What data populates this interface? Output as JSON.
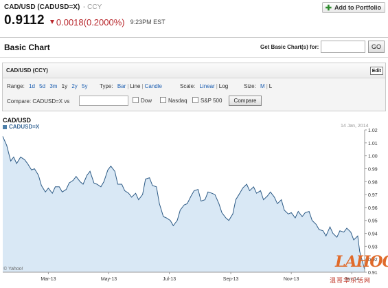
{
  "quote": {
    "title": "CAD/USD (CADUSD=X)",
    "exchange": "- CCY",
    "price": "0.9112",
    "change": "0.0018",
    "change_pct": "(0.2000%)",
    "time": "9:23PM EST",
    "add_portfolio": "Add to Portfolio",
    "down_color": "#b8272c"
  },
  "section": {
    "title": "Basic Chart",
    "get_label": "Get Basic Chart(s) for:",
    "get_value": "",
    "go_label": "GO"
  },
  "panel": {
    "title": "CAD/USD (CCY)",
    "edit_label": "Edit",
    "range_label": "Range:",
    "ranges": [
      "1d",
      "5d",
      "3m",
      "1y",
      "2y",
      "5y"
    ],
    "range_selected": "1y",
    "type_label": "Type:",
    "types": [
      "Bar",
      "Line",
      "Candle"
    ],
    "type_selected": "Line",
    "scale_label": "Scale:",
    "scales": [
      "Linear",
      "Log"
    ],
    "scale_selected": "Log",
    "size_label": "Size:",
    "sizes": [
      "M",
      "L"
    ],
    "size_selected": "L",
    "compare_label": "Compare: CADUSD=X vs",
    "compare_value": "",
    "checks": [
      "Dow",
      "Nasdaq",
      "S&P 500"
    ],
    "compare_btn": "Compare"
  },
  "chart_data": {
    "type": "area",
    "title": "CAD/USD",
    "series_label": "CADUSD=X",
    "date_label": "14 Jan, 2014",
    "credit": "© Yahoo!",
    "x_tick_labels": [
      "Mar-13",
      "May-13",
      "Jul-13",
      "Sep-13",
      "Nov-13",
      "Jan-14"
    ],
    "y_ticks": [
      0.91,
      0.92,
      0.93,
      0.94,
      0.95,
      0.96,
      0.97,
      0.98,
      0.99,
      1.0,
      1.01,
      1.02
    ],
    "y_tick_labels": [
      "0.91",
      "0.92",
      "0.93",
      "0.94",
      "0.95",
      "0.96",
      "0.97",
      "0.98",
      "0.99",
      "1.00",
      "1.01",
      "1.02"
    ],
    "ylim": [
      0.91,
      1.02
    ],
    "xlim": [
      "2013-01-14",
      "2014-01-14"
    ],
    "grid": false,
    "line_color": "#2c5a85",
    "fill_color": "#d9e8f5",
    "series": [
      {
        "points": [
          [
            "2013-01-14",
            1.015
          ],
          [
            "2013-01-18",
            1.008
          ],
          [
            "2013-01-22",
            0.996
          ],
          [
            "2013-01-25",
            0.999
          ],
          [
            "2013-01-28",
            0.994
          ],
          [
            "2013-02-01",
            0.999
          ],
          [
            "2013-02-05",
            0.997
          ],
          [
            "2013-02-08",
            0.994
          ],
          [
            "2013-02-12",
            0.989
          ],
          [
            "2013-02-15",
            0.99
          ],
          [
            "2013-02-19",
            0.985
          ],
          [
            "2013-02-22",
            0.977
          ],
          [
            "2013-02-26",
            0.972
          ],
          [
            "2013-03-01",
            0.975
          ],
          [
            "2013-03-05",
            0.971
          ],
          [
            "2013-03-08",
            0.976
          ],
          [
            "2013-03-12",
            0.976
          ],
          [
            "2013-03-15",
            0.972
          ],
          [
            "2013-03-19",
            0.974
          ],
          [
            "2013-03-22",
            0.979
          ],
          [
            "2013-03-26",
            0.981
          ],
          [
            "2013-03-29",
            0.984
          ],
          [
            "2013-04-02",
            0.98
          ],
          [
            "2013-04-05",
            0.978
          ],
          [
            "2013-04-09",
            0.985
          ],
          [
            "2013-04-12",
            0.988
          ],
          [
            "2013-04-16",
            0.979
          ],
          [
            "2013-04-19",
            0.978
          ],
          [
            "2013-04-23",
            0.976
          ],
          [
            "2013-04-26",
            0.98
          ],
          [
            "2013-04-30",
            0.989
          ],
          [
            "2013-05-03",
            0.992
          ],
          [
            "2013-05-07",
            0.988
          ],
          [
            "2013-05-10",
            0.978
          ],
          [
            "2013-05-14",
            0.978
          ],
          [
            "2013-05-17",
            0.973
          ],
          [
            "2013-05-21",
            0.971
          ],
          [
            "2013-05-24",
            0.968
          ],
          [
            "2013-05-28",
            0.971
          ],
          [
            "2013-05-31",
            0.966
          ],
          [
            "2013-06-04",
            0.97
          ],
          [
            "2013-06-07",
            0.982
          ],
          [
            "2013-06-11",
            0.983
          ],
          [
            "2013-06-14",
            0.977
          ],
          [
            "2013-06-18",
            0.976
          ],
          [
            "2013-06-21",
            0.963
          ],
          [
            "2013-06-25",
            0.953
          ],
          [
            "2013-06-28",
            0.952
          ],
          [
            "2013-07-02",
            0.95
          ],
          [
            "2013-07-05",
            0.946
          ],
          [
            "2013-07-09",
            0.95
          ],
          [
            "2013-07-12",
            0.958
          ],
          [
            "2013-07-16",
            0.962
          ],
          [
            "2013-07-19",
            0.963
          ],
          [
            "2013-07-23",
            0.969
          ],
          [
            "2013-07-26",
            0.973
          ],
          [
            "2013-07-30",
            0.974
          ],
          [
            "2013-08-02",
            0.965
          ],
          [
            "2013-08-06",
            0.966
          ],
          [
            "2013-08-09",
            0.972
          ],
          [
            "2013-08-13",
            0.971
          ],
          [
            "2013-08-16",
            0.97
          ],
          [
            "2013-08-20",
            0.963
          ],
          [
            "2013-08-23",
            0.956
          ],
          [
            "2013-08-27",
            0.952
          ],
          [
            "2013-08-30",
            0.95
          ],
          [
            "2013-09-03",
            0.955
          ],
          [
            "2013-09-06",
            0.966
          ],
          [
            "2013-09-10",
            0.971
          ],
          [
            "2013-09-13",
            0.975
          ],
          [
            "2013-09-17",
            0.978
          ],
          [
            "2013-09-20",
            0.973
          ],
          [
            "2013-09-24",
            0.976
          ],
          [
            "2013-09-27",
            0.971
          ],
          [
            "2013-10-01",
            0.973
          ],
          [
            "2013-10-04",
            0.966
          ],
          [
            "2013-10-08",
            0.969
          ],
          [
            "2013-10-11",
            0.972
          ],
          [
            "2013-10-15",
            0.968
          ],
          [
            "2013-10-18",
            0.963
          ],
          [
            "2013-10-22",
            0.966
          ],
          [
            "2013-10-25",
            0.958
          ],
          [
            "2013-10-29",
            0.955
          ],
          [
            "2013-11-01",
            0.956
          ],
          [
            "2013-11-05",
            0.952
          ],
          [
            "2013-11-08",
            0.957
          ],
          [
            "2013-11-12",
            0.953
          ],
          [
            "2013-11-15",
            0.956
          ],
          [
            "2013-11-19",
            0.957
          ],
          [
            "2013-11-22",
            0.95
          ],
          [
            "2013-11-26",
            0.947
          ],
          [
            "2013-11-29",
            0.943
          ],
          [
            "2013-12-03",
            0.942
          ],
          [
            "2013-12-06",
            0.938
          ],
          [
            "2013-12-10",
            0.945
          ],
          [
            "2013-12-13",
            0.94
          ],
          [
            "2013-12-17",
            0.937
          ],
          [
            "2013-12-20",
            0.942
          ],
          [
            "2013-12-24",
            0.941
          ],
          [
            "2013-12-27",
            0.944
          ],
          [
            "2013-12-31",
            0.941
          ],
          [
            "2014-01-03",
            0.935
          ],
          [
            "2014-01-07",
            0.938
          ],
          [
            "2014-01-09",
            0.926
          ],
          [
            "2014-01-14",
            0.912
          ]
        ]
      }
    ]
  },
  "watermark": {
    "logo": "LAHOO",
    "sub": "温哥华乐活网"
  }
}
